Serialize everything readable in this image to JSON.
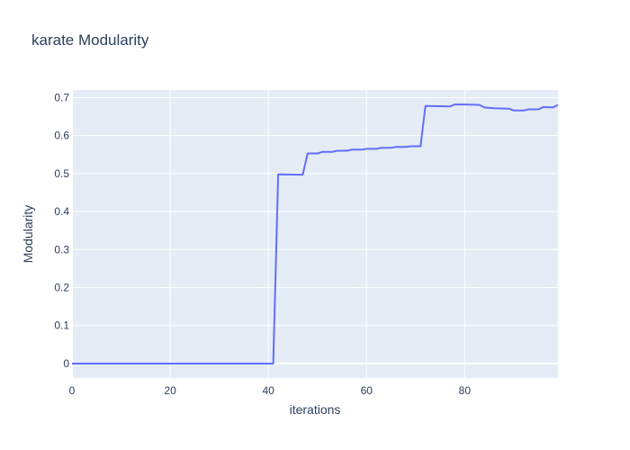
{
  "chart_data": {
    "type": "line",
    "title": "karate Modularity",
    "xlabel": "iterations",
    "ylabel": "Modularity",
    "xlim": [
      0,
      99
    ],
    "ylim": [
      -0.038,
      0.72
    ],
    "x_ticks": [
      0,
      20,
      40,
      60,
      80
    ],
    "y_ticks": [
      0,
      0.1,
      0.2,
      0.3,
      0.4,
      0.5,
      0.6,
      0.7
    ],
    "x_tick_labels": [
      "0",
      "20",
      "40",
      "60",
      "80"
    ],
    "y_tick_labels": [
      "0",
      "0.1",
      "0.2",
      "0.3",
      "0.4",
      "0.5",
      "0.6",
      "0.7"
    ],
    "grid": true,
    "series": [
      {
        "color": "#636efa",
        "x": [
          0,
          41,
          42,
          47,
          48,
          50,
          51,
          53,
          54,
          56,
          57,
          59,
          60,
          62,
          63,
          65,
          66,
          68,
          69,
          71,
          72,
          77,
          78,
          83,
          84,
          86,
          89,
          90,
          92,
          93,
          95,
          96,
          98,
          99
        ],
        "y": [
          0,
          0,
          0.498,
          0.497,
          0.553,
          0.553,
          0.557,
          0.557,
          0.56,
          0.56,
          0.563,
          0.563,
          0.565,
          0.565,
          0.568,
          0.568,
          0.57,
          0.57,
          0.572,
          0.572,
          0.678,
          0.677,
          0.682,
          0.681,
          0.674,
          0.672,
          0.671,
          0.666,
          0.666,
          0.669,
          0.669,
          0.675,
          0.674,
          0.681
        ]
      }
    ]
  }
}
